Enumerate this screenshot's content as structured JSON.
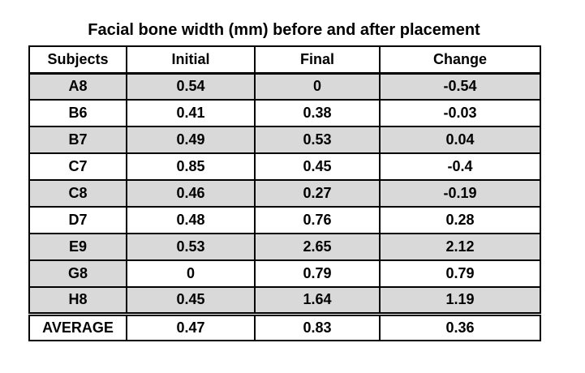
{
  "title": "Facial bone width (mm) before and after placement",
  "table": {
    "columns": [
      "Subjects",
      "Initial",
      "Final",
      "Change"
    ],
    "rows": [
      {
        "subject": "A8",
        "initial": "0.54",
        "final": "0",
        "change": "-0.54",
        "subject_shaded": true,
        "values_shaded": true,
        "average": false
      },
      {
        "subject": "B6",
        "initial": "0.41",
        "final": "0.38",
        "change": "-0.03",
        "subject_shaded": false,
        "values_shaded": false,
        "average": false
      },
      {
        "subject": "B7",
        "initial": "0.49",
        "final": "0.53",
        "change": "0.04",
        "subject_shaded": true,
        "values_shaded": true,
        "average": false
      },
      {
        "subject": "C7",
        "initial": "0.85",
        "final": "0.45",
        "change": "-0.4",
        "subject_shaded": false,
        "values_shaded": false,
        "average": false
      },
      {
        "subject": "C8",
        "initial": "0.46",
        "final": "0.27",
        "change": "-0.19",
        "subject_shaded": true,
        "values_shaded": true,
        "average": false
      },
      {
        "subject": "D7",
        "initial": "0.48",
        "final": "0.76",
        "change": "0.28",
        "subject_shaded": false,
        "values_shaded": false,
        "average": false
      },
      {
        "subject": "E9",
        "initial": "0.53",
        "final": "2.65",
        "change": "2.12",
        "subject_shaded": true,
        "values_shaded": true,
        "average": false
      },
      {
        "subject": "G8",
        "initial": "0",
        "final": "0.79",
        "change": "0.79",
        "subject_shaded": true,
        "values_shaded": false,
        "average": false
      },
      {
        "subject": "H8",
        "initial": "0.45",
        "final": "1.64",
        "change": "1.19",
        "subject_shaded": true,
        "values_shaded": true,
        "average": false
      },
      {
        "subject": "AVERAGE",
        "initial": "0.47",
        "final": "0.83",
        "change": "0.36",
        "subject_shaded": false,
        "values_shaded": false,
        "average": true
      }
    ]
  },
  "colors": {
    "shaded_row": "#d9d9d9",
    "border": "#000000",
    "text": "#000000",
    "background": "#ffffff"
  },
  "chart_data": {
    "type": "table",
    "title": "Facial bone width (mm) before and after placement",
    "columns": [
      "Subjects",
      "Initial",
      "Final",
      "Change"
    ],
    "rows": [
      [
        "A8",
        0.54,
        0,
        -0.54
      ],
      [
        "B6",
        0.41,
        0.38,
        -0.03
      ],
      [
        "B7",
        0.49,
        0.53,
        0.04
      ],
      [
        "C7",
        0.85,
        0.45,
        -0.4
      ],
      [
        "C8",
        0.46,
        0.27,
        -0.19
      ],
      [
        "D7",
        0.48,
        0.76,
        0.28
      ],
      [
        "E9",
        0.53,
        2.65,
        2.12
      ],
      [
        "G8",
        0,
        0.79,
        0.79
      ],
      [
        "H8",
        0.45,
        1.64,
        1.19
      ],
      [
        "AVERAGE",
        0.47,
        0.83,
        0.36
      ]
    ],
    "units": "mm"
  }
}
